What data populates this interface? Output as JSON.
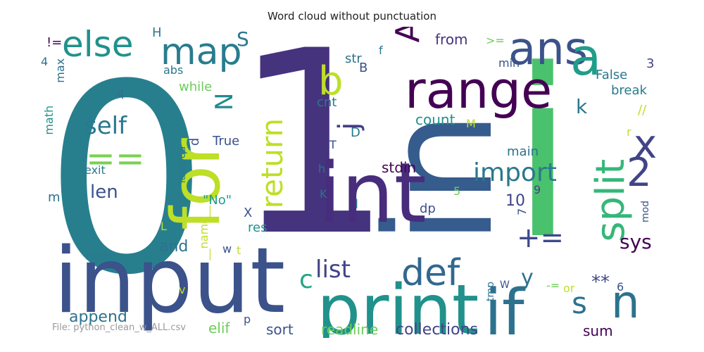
{
  "chart_data": {
    "type": "wordcloud",
    "title": "Word cloud without punctuation",
    "footer": "File: python_clean_w_ALL.csv",
    "words": [
      {
        "text": "1",
        "size": 360,
        "color": "#46337e",
        "rotate": 0
      },
      {
        "text": "0",
        "size": 370,
        "color": "#277f8e",
        "rotate": 0
      },
      {
        "text": "i",
        "size": 330,
        "color": "#4ac16d",
        "rotate": 0
      },
      {
        "text": "in",
        "size": 210,
        "color": "#365c8d",
        "rotate": -90
      },
      {
        "text": "input",
        "size": 128,
        "color": "#3b528b",
        "rotate": 0
      },
      {
        "text": "int",
        "size": 118,
        "color": "#472d7b",
        "rotate": 0
      },
      {
        "text": "print",
        "size": 98,
        "color": "#21918c",
        "rotate": 0
      },
      {
        "text": "for",
        "size": 95,
        "color": "#bddf26",
        "rotate": -90
      },
      {
        "text": "if",
        "size": 90,
        "color": "#2c728e",
        "rotate": 0
      },
      {
        "text": "range",
        "size": 72,
        "color": "#440154",
        "rotate": 0
      },
      {
        "text": "ans",
        "size": 64,
        "color": "#3b528b",
        "rotate": 0
      },
      {
        "text": "a",
        "size": 72,
        "color": "#1f9e89",
        "rotate": 0
      },
      {
        "text": "n",
        "size": 64,
        "color": "#2c728e",
        "rotate": 0
      },
      {
        "text": "map",
        "size": 52,
        "color": "#287c8e",
        "rotate": 0
      },
      {
        "text": "else",
        "size": 50,
        "color": "#21918c",
        "rotate": 0
      },
      {
        "text": "split",
        "size": 56,
        "color": "#35b779",
        "rotate": -90
      },
      {
        "text": "def",
        "size": 52,
        "color": "#31688e",
        "rotate": 0
      },
      {
        "text": "return",
        "size": 42,
        "color": "#bddf26",
        "rotate": -90
      },
      {
        "text": "b",
        "size": 56,
        "color": "#bddf26",
        "rotate": 0
      },
      {
        "text": "x",
        "size": 56,
        "color": "#414487",
        "rotate": 0
      },
      {
        "text": "2",
        "size": 56,
        "color": "#414487",
        "rotate": 0
      },
      {
        "text": "==",
        "size": 50,
        "color": "#7ad151",
        "rotate": 0
      },
      {
        "text": "A",
        "size": 46,
        "color": "#440154",
        "rotate": -90
      },
      {
        "text": "import",
        "size": 36,
        "color": "#2a788e",
        "rotate": 0
      },
      {
        "text": "self",
        "size": 34,
        "color": "#2a788e",
        "rotate": 0
      },
      {
        "text": "list",
        "size": 34,
        "color": "#414487",
        "rotate": 0
      },
      {
        "text": "+=",
        "size": 40,
        "color": "#3e4a89",
        "rotate": 0
      },
      {
        "text": "j",
        "size": 40,
        "color": "#433e85",
        "rotate": -90
      },
      {
        "text": "c",
        "size": 36,
        "color": "#22a884",
        "rotate": 0
      },
      {
        "text": "sys",
        "size": 28,
        "color": "#440154",
        "rotate": 0
      },
      {
        "text": "len",
        "size": 26,
        "color": "#3b528b",
        "rotate": 0
      },
      {
        "text": "N",
        "size": 34,
        "color": "#238a8d",
        "rotate": -90
      },
      {
        "text": "s",
        "size": 42,
        "color": "#2c728e",
        "rotate": 0
      },
      {
        "text": "y",
        "size": 30,
        "color": "#2c728e",
        "rotate": 0
      },
      {
        "text": "**",
        "size": 26,
        "color": "#414487",
        "rotate": 0
      },
      {
        "text": "S",
        "size": 28,
        "color": "#2a788e",
        "rotate": 0
      },
      {
        "text": "k",
        "size": 28,
        "color": "#2a788e",
        "rotate": 0
      },
      {
        "text": "10",
        "size": 22,
        "color": "#414487",
        "rotate": 0
      },
      {
        "text": "append",
        "size": 22,
        "color": "#2c728e",
        "rotate": 0
      },
      {
        "text": "and",
        "size": 22,
        "color": "#2c728e",
        "rotate": 0
      },
      {
        "text": "collections",
        "size": 22,
        "color": "#414487",
        "rotate": 0
      },
      {
        "text": "sort",
        "size": 20,
        "color": "#3b528b",
        "rotate": 0
      },
      {
        "text": "sum",
        "size": 20,
        "color": "#440154",
        "rotate": 0
      },
      {
        "text": "elif",
        "size": 20,
        "color": "#6ccd5a",
        "rotate": 0
      },
      {
        "text": "readline",
        "size": 20,
        "color": "#6ccd5a",
        "rotate": 0
      },
      {
        "text": "count",
        "size": 20,
        "color": "#21918c",
        "rotate": 0
      },
      {
        "text": "stdin",
        "size": 20,
        "color": "#440154",
        "rotate": 0
      },
      {
        "text": "from",
        "size": 20,
        "color": "#46337e",
        "rotate": 0
      },
      {
        "text": "break",
        "size": 18,
        "color": "#287c8e",
        "rotate": 0
      },
      {
        "text": "False",
        "size": 18,
        "color": "#2a788e",
        "rotate": 0
      },
      {
        "text": "main",
        "size": 18,
        "color": "#2c728e",
        "rotate": 0
      },
      {
        "text": "True",
        "size": 18,
        "color": "#3b528b",
        "rotate": 0
      },
      {
        "text": "\"No\"",
        "size": 18,
        "color": "#1f9e89",
        "rotate": 0
      },
      {
        "text": "while",
        "size": 18,
        "color": "#6ccd5a",
        "rotate": 0
      },
      {
        "text": "res",
        "size": 18,
        "color": "#21918c",
        "rotate": 0
      },
      {
        "text": "num",
        "size": 16,
        "color": "#2a788e",
        "rotate": 0
      },
      {
        "text": "exit",
        "size": 16,
        "color": "#2a788e",
        "rotate": 0
      },
      {
        "text": "abs",
        "size": 16,
        "color": "#2a788e",
        "rotate": 0
      },
      {
        "text": "cnt",
        "size": 18,
        "color": "#2a788e",
        "rotate": 0
      },
      {
        "text": "str",
        "size": 18,
        "color": "#2c728e",
        "rotate": 0
      },
      {
        "text": "min",
        "size": 16,
        "color": "#3b528b",
        "rotate": 0
      },
      {
        "text": "dp",
        "size": 18,
        "color": "#3b528b",
        "rotate": 0
      },
      {
        "text": "math",
        "size": 16,
        "color": "#21918c",
        "rotate": -90
      },
      {
        "text": "max",
        "size": 16,
        "color": "#2c728e",
        "rotate": -90
      },
      {
        "text": "lambda",
        "size": 14,
        "color": "#2a788e",
        "rotate": -90
      },
      {
        "text": "__name__",
        "size": 16,
        "color": "#bddf26",
        "rotate": -90
      },
      {
        "text": "mod",
        "size": 14,
        "color": "#3b528b",
        "rotate": -90
      },
      {
        "text": "tmp",
        "size": 14,
        "color": "#2c728e",
        "rotate": -90
      },
      {
        "text": "-=",
        "size": 16,
        "color": "#6ccd5a",
        "rotate": 0
      },
      {
        "text": "or",
        "size": 16,
        "color": "#bddf26",
        "rotate": 0
      },
      {
        "text": "!=",
        "size": 18,
        "color": "#440154",
        "rotate": 0
      },
      {
        "text": ">=",
        "size": 16,
        "color": "#6ccd5a",
        "rotate": 0
      },
      {
        "text": "//",
        "size": 18,
        "color": "#bddf26",
        "rotate": 0
      },
      {
        "text": "3",
        "size": 18,
        "color": "#414487",
        "rotate": 0
      },
      {
        "text": "4",
        "size": 16,
        "color": "#2c728e",
        "rotate": 0
      },
      {
        "text": "5",
        "size": 16,
        "color": "#6ccd5a",
        "rotate": 0
      },
      {
        "text": "6",
        "size": 16,
        "color": "#3b528b",
        "rotate": 0
      },
      {
        "text": "7",
        "size": 16,
        "color": "#3b528b",
        "rotate": -90
      },
      {
        "text": "9",
        "size": 16,
        "color": "#414487",
        "rotate": 0
      },
      {
        "text": "H",
        "size": 18,
        "color": "#2a788e",
        "rotate": 0
      },
      {
        "text": "B",
        "size": 18,
        "color": "#3b528b",
        "rotate": 0
      },
      {
        "text": "D",
        "size": 18,
        "color": "#2a788e",
        "rotate": 0
      },
      {
        "text": "K",
        "size": 16,
        "color": "#2c728e",
        "rotate": 0
      },
      {
        "text": "L",
        "size": 16,
        "color": "#bddf26",
        "rotate": 0
      },
      {
        "text": "M",
        "size": 16,
        "color": "#bddf26",
        "rotate": 0
      },
      {
        "text": "T",
        "size": 16,
        "color": "#3b528b",
        "rotate": 0
      },
      {
        "text": "X",
        "size": 18,
        "color": "#3b528b",
        "rotate": 0
      },
      {
        "text": "W",
        "size": 14,
        "color": "#3b528b",
        "rotate": 0
      },
      {
        "text": "d",
        "size": 18,
        "color": "#3b528b",
        "rotate": -90
      },
      {
        "text": "f",
        "size": 16,
        "color": "#2a788e",
        "rotate": 0
      },
      {
        "text": "h",
        "size": 16,
        "color": "#2c728e",
        "rotate": 0
      },
      {
        "text": "l",
        "size": 18,
        "color": "#2c728e",
        "rotate": 0
      },
      {
        "text": "m",
        "size": 18,
        "color": "#2c728e",
        "rotate": 0
      },
      {
        "text": "p",
        "size": 16,
        "color": "#3b528b",
        "rotate": 0
      },
      {
        "text": "q",
        "size": 16,
        "color": "#2c728e",
        "rotate": 0
      },
      {
        "text": "r",
        "size": 16,
        "color": "#bddf26",
        "rotate": 0
      },
      {
        "text": "t",
        "size": 16,
        "color": "#bddf26",
        "rotate": 0
      },
      {
        "text": "v",
        "size": 16,
        "color": "#bddf26",
        "rotate": 0
      },
      {
        "text": "w",
        "size": 16,
        "color": "#3b528b",
        "rotate": 0
      }
    ]
  }
}
